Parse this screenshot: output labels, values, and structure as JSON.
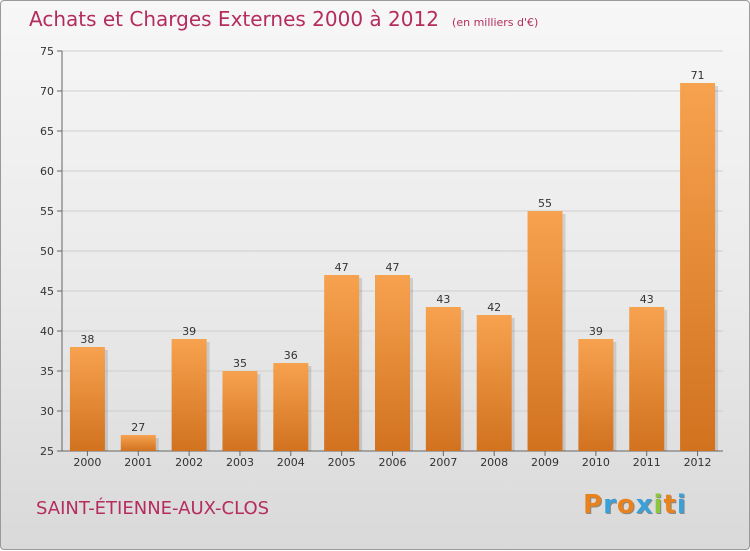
{
  "title": "Achats et Charges Externes 2000 à 2012",
  "unit": "(en milliers d'€)",
  "commune": "SAINT-ÉTIENNE-AUX-CLOS",
  "logo": {
    "letters": [
      "P",
      "r",
      "o",
      "x",
      "i",
      "t",
      "i"
    ],
    "colors": [
      "#e8821e",
      "#3aa0d8",
      "#e8821e",
      "#3aa0d8",
      "#8cc63f",
      "#e8821e",
      "#3aa0d8"
    ]
  },
  "colors": {
    "bar_top": "#f7a24f",
    "bar_bottom": "#d1721f",
    "title": "#b52c5f"
  },
  "chart_data": {
    "type": "bar",
    "categories": [
      "2000",
      "2001",
      "2002",
      "2003",
      "2004",
      "2005",
      "2006",
      "2007",
      "2008",
      "2009",
      "2010",
      "2011",
      "2012"
    ],
    "values": [
      38,
      27,
      39,
      35,
      36,
      47,
      47,
      43,
      42,
      55,
      39,
      43,
      71
    ],
    "ylim": [
      25,
      75
    ],
    "yticks": [
      25,
      30,
      35,
      40,
      45,
      50,
      55,
      60,
      65,
      70,
      75
    ],
    "grid": true
  }
}
